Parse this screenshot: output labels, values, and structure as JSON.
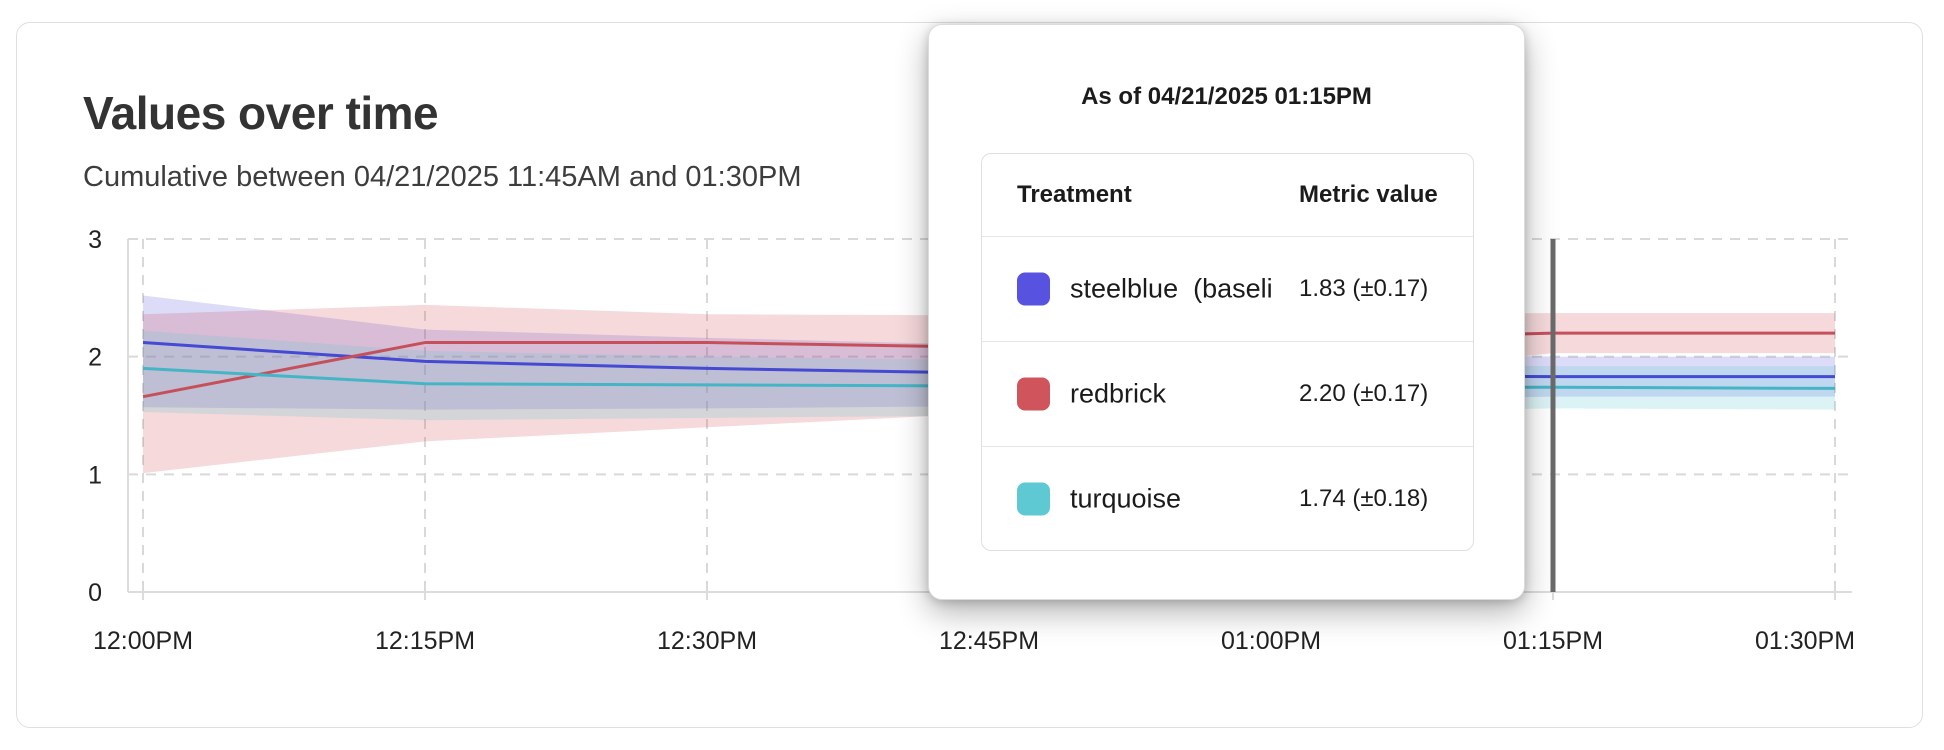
{
  "chart_data": {
    "type": "line",
    "title": "Values over time",
    "subtitle": "Cumulative between 04/21/2025 11:45AM and 01:30PM",
    "x_tick_labels": [
      "12:00PM",
      "12:15PM",
      "12:30PM",
      "12:45PM",
      "01:00PM",
      "01:15PM",
      "01:30PM"
    ],
    "y_tick_labels": [
      "0",
      "1",
      "2",
      "3"
    ],
    "ylim": [
      0,
      3
    ],
    "grid": true,
    "legend_position": "none",
    "cursor_at": "01:15PM",
    "series": [
      {
        "name": "steelblue (baseline)",
        "line_color": "#4649d2",
        "band_color": "rgba(82,82,224,0.20)",
        "values": [
          2.12,
          1.96,
          1.9,
          1.86,
          1.84,
          1.83,
          1.83
        ],
        "band_top": [
          2.52,
          2.23,
          2.16,
          2.1,
          2.04,
          2.0,
          2.0
        ],
        "band_bottom": [
          1.57,
          1.55,
          1.56,
          1.58,
          1.62,
          1.66,
          1.66
        ]
      },
      {
        "name": "redbrick",
        "line_color": "#c6505a",
        "band_color": "rgba(208,84,92,0.22)",
        "values": [
          1.66,
          2.12,
          2.12,
          2.08,
          2.14,
          2.2,
          2.2
        ],
        "band_top": [
          2.36,
          2.44,
          2.36,
          2.35,
          2.36,
          2.37,
          2.37
        ],
        "band_bottom": [
          1.01,
          1.28,
          1.4,
          1.52,
          1.78,
          2.03,
          2.03
        ]
      },
      {
        "name": "turquoise",
        "line_color": "#45b5c5",
        "band_color": "rgba(94,201,211,0.22)",
        "values": [
          1.9,
          1.77,
          1.76,
          1.75,
          1.74,
          1.74,
          1.73
        ],
        "band_top": [
          2.22,
          2.05,
          2.0,
          1.97,
          1.94,
          1.92,
          1.92
        ],
        "band_bottom": [
          1.53,
          1.46,
          1.48,
          1.5,
          1.52,
          1.56,
          1.55
        ]
      }
    ]
  },
  "tooltip": {
    "title": "As of 04/21/2025 01:15PM",
    "columns": [
      "Treatment",
      "Metric value"
    ],
    "rows": [
      {
        "label": "steelblue  (baseli",
        "swatch": "#5752e0",
        "value": "1.83 (±0.17)"
      },
      {
        "label": "redbrick",
        "swatch": "#d0545c",
        "value": "2.20 (±0.17)"
      },
      {
        "label": "turquoise",
        "swatch": "#5ec9d3",
        "value": "1.74 (±0.18)"
      }
    ]
  }
}
